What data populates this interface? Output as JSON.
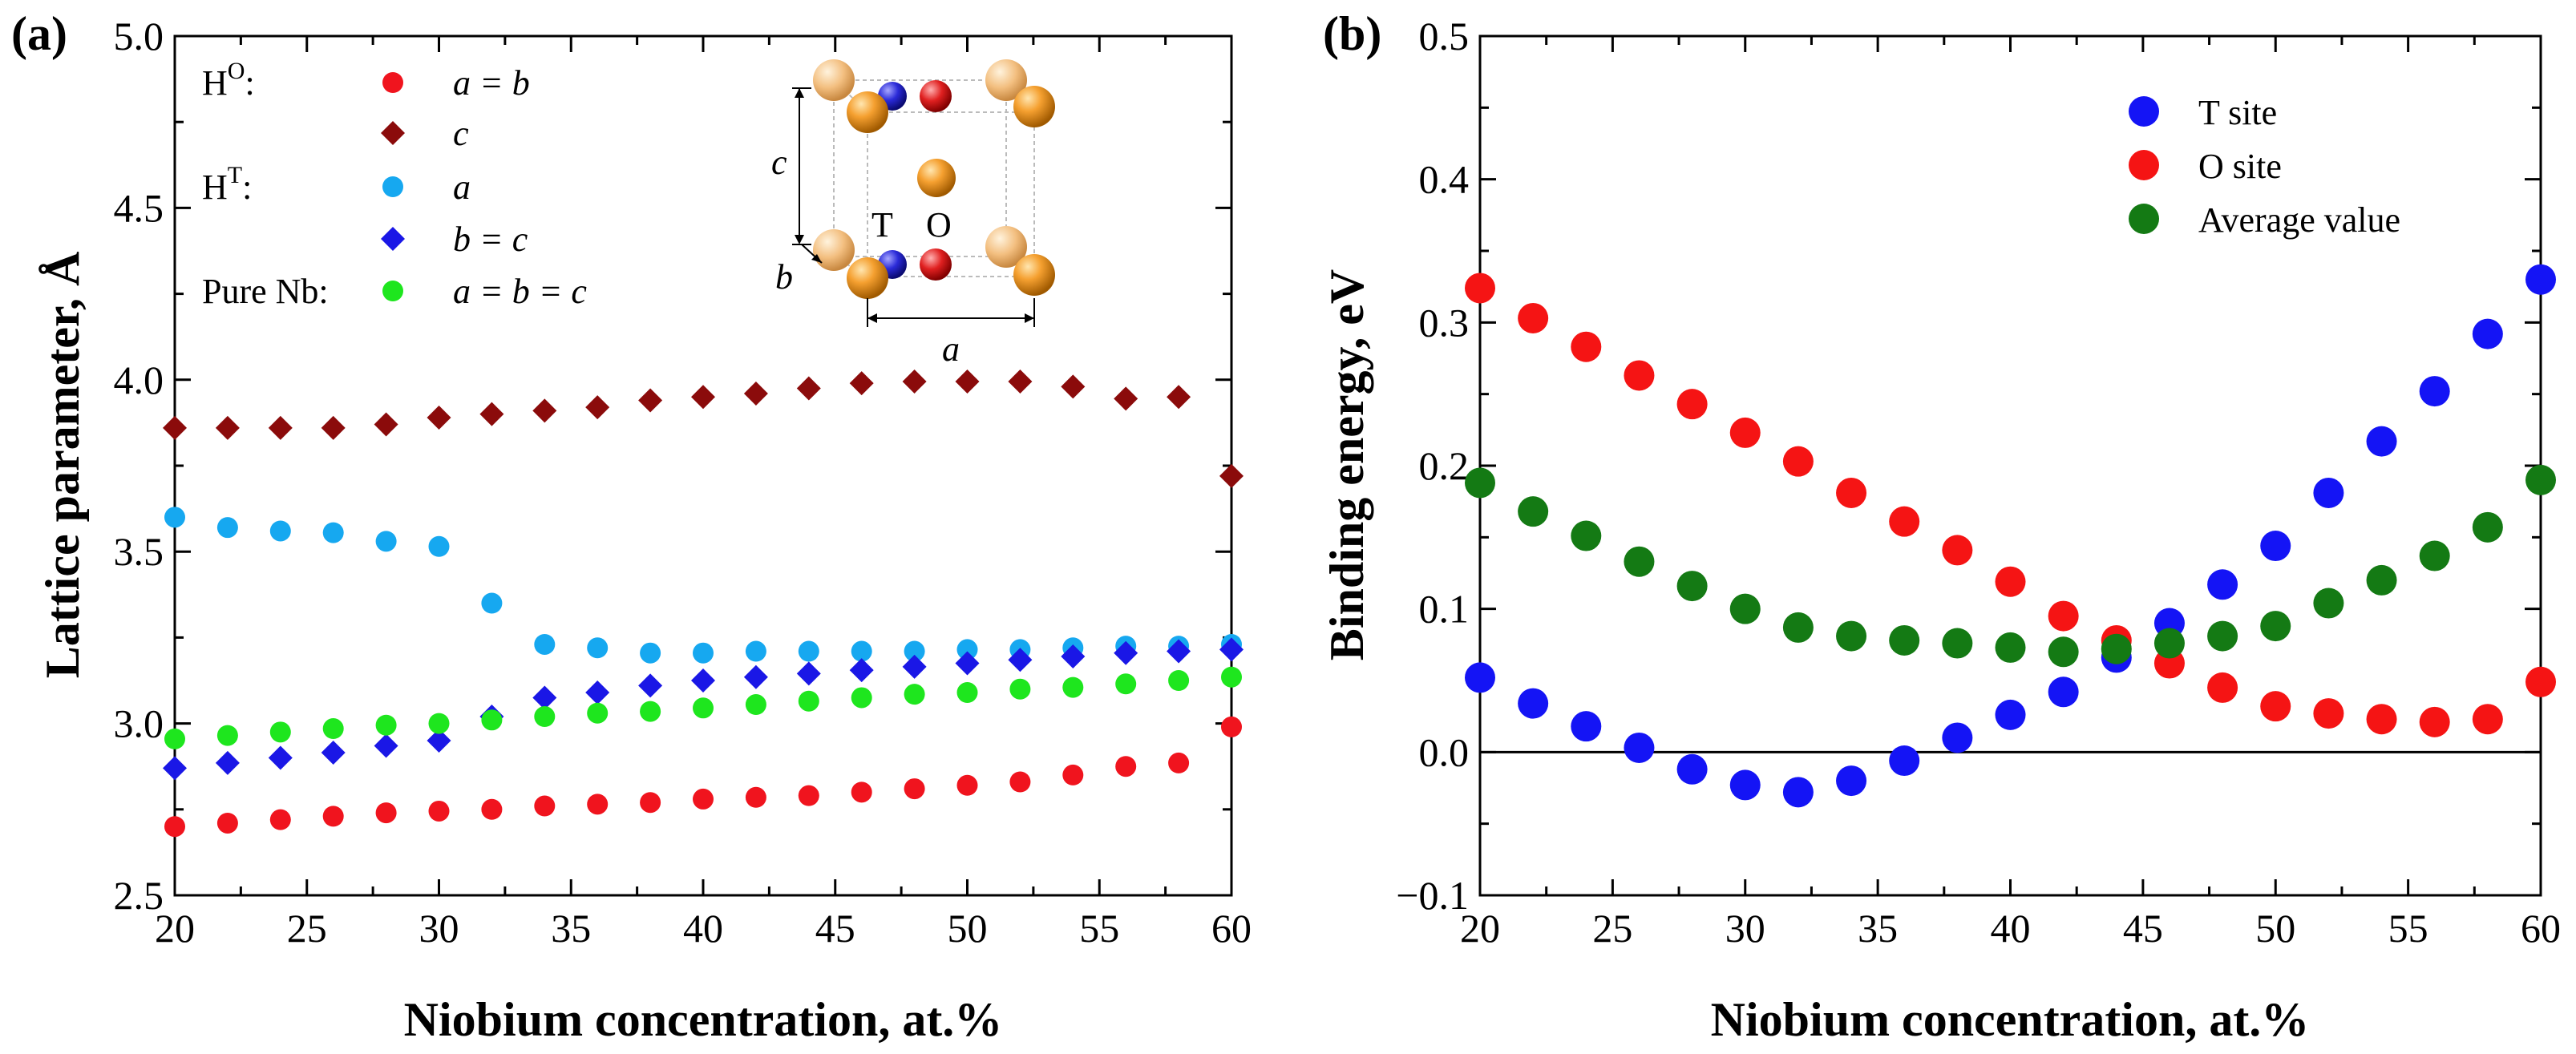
{
  "panels": [
    {
      "panel_label": "(a)",
      "legend": {
        "group_ho": {
          "base": "H",
          "sup": "O",
          "suffix": ":"
        },
        "group_ht": {
          "base": "H",
          "sup": "T",
          "suffix": ":"
        },
        "group_pure": "Pure Nb:"
      },
      "inset": {
        "label_c": "c",
        "label_b": "b",
        "label_a": "a",
        "label_t": "T",
        "label_o": "O"
      }
    },
    {
      "panel_label": "(b)"
    }
  ],
  "colors": {
    "red": "#f0141e",
    "darkred": "#8b0b0b",
    "lightblue": "#16a8f0",
    "blue": "#1a17e6",
    "green": "#1ee61e",
    "tsite": "#1414f5",
    "osite": "#f51414",
    "avg": "#147a14"
  },
  "chart_data": [
    {
      "type": "scatter",
      "title": "",
      "xlabel": "Niobium concentration, at.%",
      "ylabel": "Lattice parameter, Å",
      "xlim": [
        20,
        60
      ],
      "ylim": [
        2.5,
        5.0
      ],
      "xticks": [
        "20",
        "25",
        "30",
        "35",
        "40",
        "45",
        "50",
        "55",
        "60"
      ],
      "yticks": [
        "2.5",
        "3.0",
        "3.5",
        "4.0",
        "4.5",
        "5.0"
      ],
      "legend_position": "top-left",
      "series": [
        {
          "name": "a = b",
          "group": "HO",
          "marker": "circle",
          "color": "#f0141e",
          "x": [
            20,
            22,
            24,
            26,
            28,
            30,
            32,
            34,
            36,
            38,
            40,
            42,
            44,
            46,
            48,
            50,
            52,
            54,
            56,
            58,
            60
          ],
          "y": [
            2.7,
            2.71,
            2.72,
            2.73,
            2.74,
            2.745,
            2.75,
            2.76,
            2.765,
            2.77,
            2.78,
            2.785,
            2.79,
            2.8,
            2.81,
            2.82,
            2.83,
            2.85,
            2.875,
            2.885,
            2.99
          ]
        },
        {
          "name": "c",
          "group": "HO",
          "marker": "diamond",
          "color": "#8b0b0b",
          "x": [
            20,
            22,
            24,
            26,
            28,
            30,
            32,
            34,
            36,
            38,
            40,
            42,
            44,
            46,
            48,
            50,
            52,
            54,
            56,
            58,
            60
          ],
          "y": [
            3.86,
            3.86,
            3.86,
            3.86,
            3.87,
            3.89,
            3.9,
            3.91,
            3.92,
            3.94,
            3.95,
            3.96,
            3.975,
            3.99,
            3.995,
            3.995,
            3.995,
            3.98,
            3.945,
            3.95,
            3.72
          ]
        },
        {
          "name": "a",
          "group": "HT",
          "marker": "circle",
          "color": "#16a8f0",
          "x": [
            20,
            22,
            24,
            26,
            28,
            30,
            32,
            34,
            36,
            38,
            40,
            42,
            44,
            46,
            48,
            50,
            52,
            54,
            56,
            58,
            60
          ],
          "y": [
            3.6,
            3.57,
            3.56,
            3.555,
            3.53,
            3.515,
            3.35,
            3.23,
            3.22,
            3.205,
            3.205,
            3.21,
            3.21,
            3.21,
            3.21,
            3.215,
            3.215,
            3.22,
            3.225,
            3.225,
            3.23
          ]
        },
        {
          "name": "b = c",
          "group": "HT",
          "marker": "diamond",
          "color": "#1a17e6",
          "x": [
            20,
            22,
            24,
            26,
            28,
            30,
            32,
            34,
            36,
            38,
            40,
            42,
            44,
            46,
            48,
            50,
            52,
            54,
            56,
            58,
            60
          ],
          "y": [
            2.87,
            2.885,
            2.9,
            2.915,
            2.935,
            2.95,
            3.02,
            3.075,
            3.09,
            3.11,
            3.125,
            3.135,
            3.145,
            3.155,
            3.165,
            3.175,
            3.185,
            3.195,
            3.205,
            3.21,
            3.215
          ]
        },
        {
          "name": "a = b = c",
          "group": "Pure Nb",
          "marker": "circle",
          "color": "#1ee61e",
          "x": [
            20,
            22,
            24,
            26,
            28,
            30,
            32,
            34,
            36,
            38,
            40,
            42,
            44,
            46,
            48,
            50,
            52,
            54,
            56,
            58,
            60
          ],
          "y": [
            2.955,
            2.965,
            2.975,
            2.985,
            2.995,
            3.0,
            3.01,
            3.02,
            3.03,
            3.035,
            3.045,
            3.055,
            3.065,
            3.075,
            3.085,
            3.09,
            3.1,
            3.105,
            3.115,
            3.125,
            3.135
          ]
        }
      ]
    },
    {
      "type": "scatter",
      "title": "",
      "xlabel": "Niobium concentration, at.%",
      "ylabel": "Binding energy, eV",
      "xlim": [
        20,
        60
      ],
      "ylim": [
        -0.1,
        0.5
      ],
      "xticks": [
        "20",
        "25",
        "30",
        "35",
        "40",
        "45",
        "50",
        "55",
        "60"
      ],
      "yticks": [
        "−0.1",
        "0.0",
        "0.1",
        "0.2",
        "0.3",
        "0.4",
        "0.5"
      ],
      "reference_line_y": 0,
      "legend_position": "top-right",
      "series": [
        {
          "name": "T site",
          "color": "#1414f5",
          "x": [
            20,
            22,
            24,
            26,
            28,
            30,
            32,
            34,
            36,
            38,
            40,
            42,
            44,
            46,
            48,
            50,
            52,
            54,
            56,
            58,
            60
          ],
          "y": [
            0.052,
            0.034,
            0.018,
            0.003,
            -0.012,
            -0.023,
            -0.028,
            -0.02,
            -0.006,
            0.01,
            0.026,
            0.042,
            0.066,
            0.09,
            0.117,
            0.144,
            0.181,
            0.217,
            0.252,
            0.292,
            0.33
          ]
        },
        {
          "name": "O site",
          "color": "#f51414",
          "x": [
            20,
            22,
            24,
            26,
            28,
            30,
            32,
            34,
            36,
            38,
            40,
            42,
            44,
            46,
            48,
            50,
            52,
            54,
            56,
            58,
            60
          ],
          "y": [
            0.324,
            0.303,
            0.283,
            0.263,
            0.243,
            0.223,
            0.203,
            0.181,
            0.161,
            0.141,
            0.119,
            0.095,
            0.078,
            0.062,
            0.045,
            0.032,
            0.027,
            0.023,
            0.021,
            0.023,
            0.049
          ]
        },
        {
          "name": "Average value",
          "color": "#147a14",
          "x": [
            20,
            22,
            24,
            26,
            28,
            30,
            32,
            34,
            36,
            38,
            40,
            42,
            44,
            46,
            48,
            50,
            52,
            54,
            56,
            58,
            60
          ],
          "y": [
            0.188,
            0.168,
            0.151,
            0.133,
            0.116,
            0.1,
            0.087,
            0.081,
            0.078,
            0.076,
            0.073,
            0.07,
            0.072,
            0.076,
            0.081,
            0.088,
            0.104,
            0.12,
            0.137,
            0.157,
            0.19
          ]
        }
      ]
    }
  ]
}
